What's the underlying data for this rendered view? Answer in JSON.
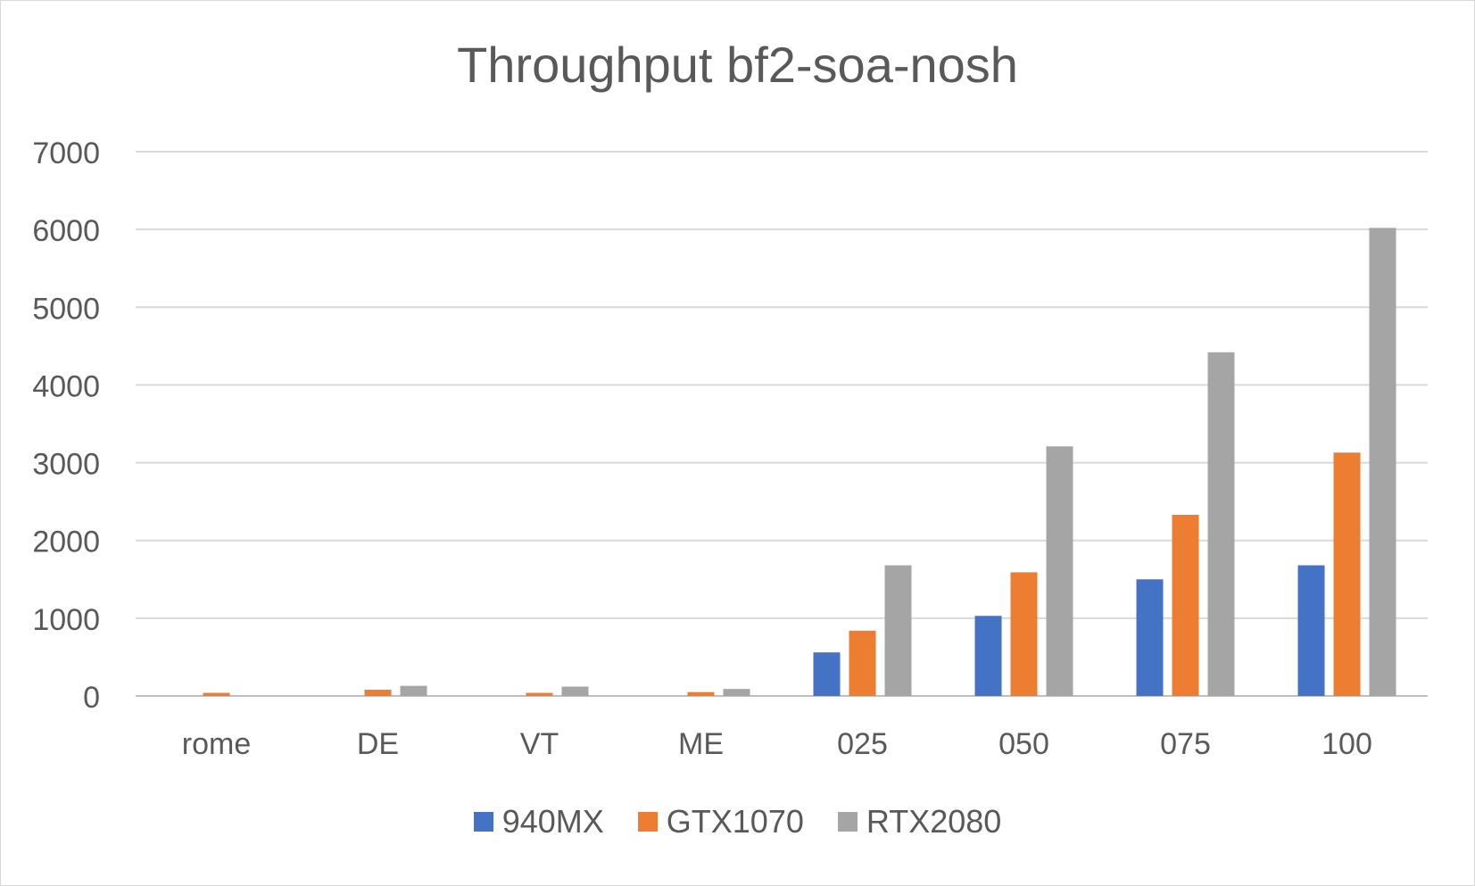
{
  "chart_data": {
    "type": "bar",
    "title": "Throughput bf2-soa-nosh",
    "xlabel": "",
    "ylabel": "",
    "categories": [
      "rome",
      "DE",
      "VT",
      "ME",
      "025",
      "050",
      "075",
      "100"
    ],
    "series": [
      {
        "name": "940MX",
        "color": "#4472c4",
        "values": [
          0,
          0,
          0,
          0,
          560,
          1030,
          1500,
          1680
        ]
      },
      {
        "name": "GTX1070",
        "color": "#ed7d31",
        "values": [
          40,
          80,
          40,
          50,
          840,
          1590,
          2330,
          3130
        ]
      },
      {
        "name": "RTX2080",
        "color": "#a5a5a5",
        "values": [
          0,
          130,
          120,
          90,
          1680,
          3210,
          4420,
          6020
        ]
      }
    ],
    "ylim": [
      0,
      7000
    ],
    "yticks": [
      0,
      1000,
      2000,
      3000,
      4000,
      5000,
      6000,
      7000
    ],
    "grid": true,
    "legend_position": "bottom"
  }
}
